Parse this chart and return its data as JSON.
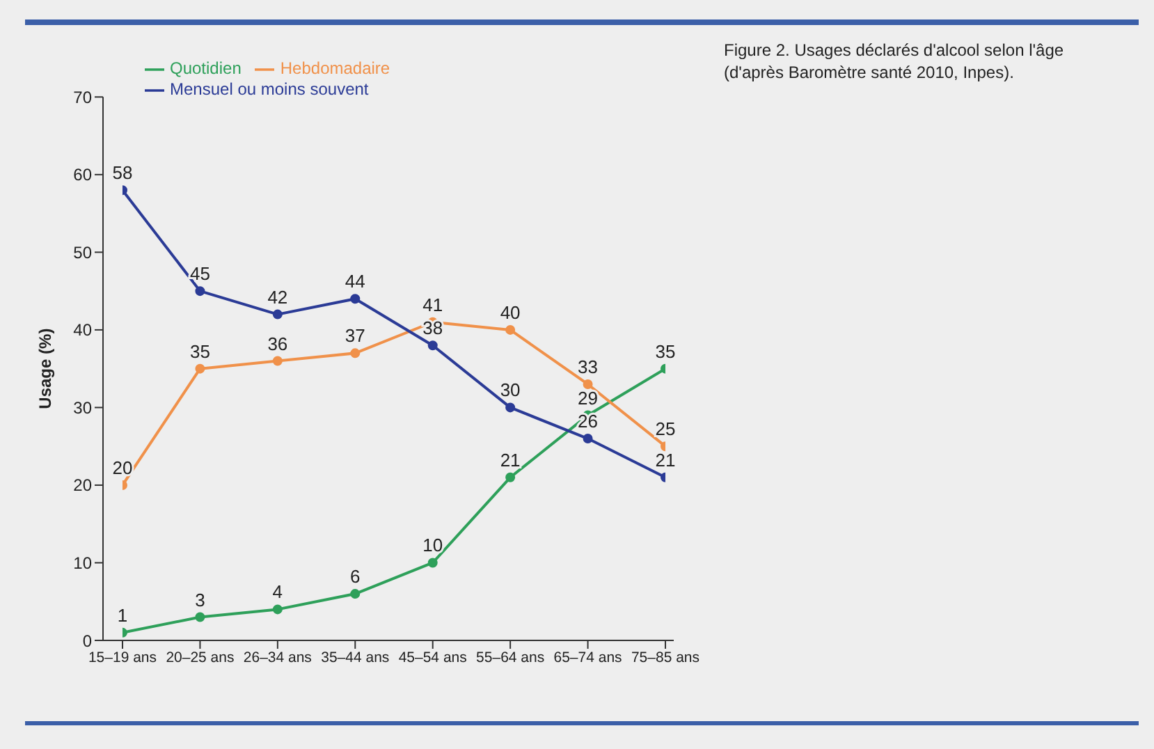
{
  "chart_data": {
    "type": "line",
    "title": "Figure 2. Usages déclarés d'alcool selon l'âge (d'après Baromètre santé 2010, Inpes).",
    "ylabel": "Usage (%)",
    "categories": [
      "15–19 ans",
      "20–25 ans",
      "26–34 ans",
      "35–44 ans",
      "45–54 ans",
      "55–64 ans",
      "65–74 ans",
      "75–85 ans"
    ],
    "series": [
      {
        "name": "Quotidien",
        "color": "#2ea05a",
        "values": [
          1,
          3,
          4,
          6,
          10,
          21,
          29,
          35
        ]
      },
      {
        "name": "Hebdomadaire",
        "color": "#f0914a",
        "values": [
          20,
          35,
          36,
          37,
          41,
          40,
          33,
          25
        ]
      },
      {
        "name": "Mensuel ou moins souvent",
        "color": "#2b3b96",
        "values": [
          58,
          45,
          42,
          44,
          38,
          30,
          26,
          21
        ]
      }
    ],
    "ylim": [
      0,
      70
    ],
    "yticks": [
      0,
      10,
      20,
      30,
      40,
      50,
      60,
      70
    ],
    "grid": false,
    "legend": "top left",
    "marker": "circle",
    "line_style": "solid",
    "data_labels": true
  }
}
